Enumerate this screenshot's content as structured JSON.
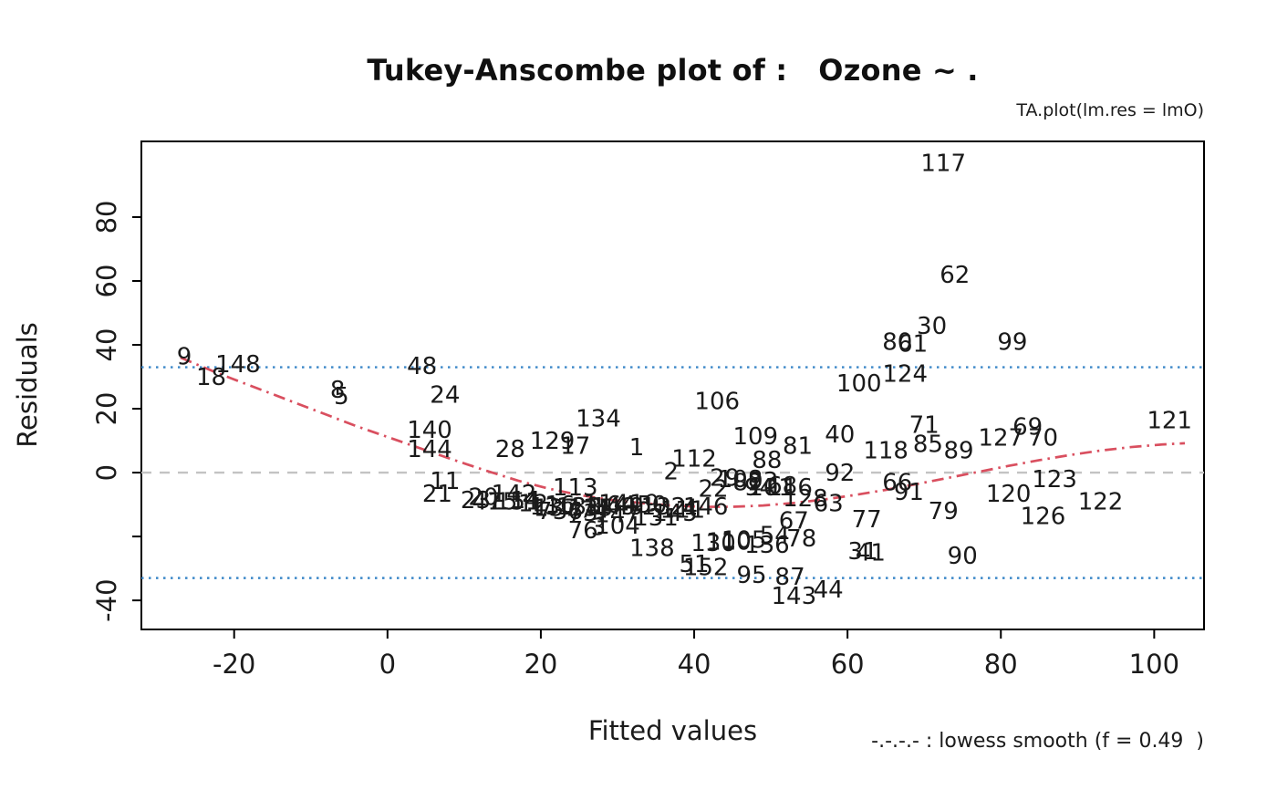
{
  "chart_data": {
    "type": "scatter",
    "title": "Tukey-Anscombe plot of :   Ozone ~ .",
    "subtitle": "TA.plot(lm.res = lmO)",
    "xlabel": "Fitted values",
    "ylabel": "Residuals",
    "legend_note": "-.-.-.- : lowess smooth (f = 0.49  )",
    "point_marker": "observation-number-labels",
    "xlim": [
      -32.1,
      106.5
    ],
    "ylim": [
      -49.1,
      103.7
    ],
    "x_ticks": [
      -20,
      0,
      20,
      40,
      60,
      80,
      100
    ],
    "y_ticks": [
      {
        "value": 80,
        "label": "80"
      },
      {
        "value": 60,
        "label": "60"
      },
      {
        "value": 40,
        "label": "40"
      },
      {
        "value": 20,
        "label": "20"
      },
      {
        "value": 0,
        "label": "0"
      },
      {
        "value": -20,
        "label": ""
      },
      {
        "value": -40,
        "label": "-40"
      }
    ],
    "colors": {
      "axis": "#000000",
      "text": "#1b1b1b",
      "lowess": "#d94f5f",
      "zero_line": "#c3c3c3",
      "band_line": "#3b87c8"
    },
    "reference_lines": [
      {
        "name": "zero-line",
        "y": 0,
        "style": "dashed",
        "color": "#c3c3c3"
      },
      {
        "name": "upper-band-line",
        "y": 33,
        "style": "dotted",
        "color": "#3b87c8"
      },
      {
        "name": "lower-band-line",
        "y": -33,
        "style": "dotted",
        "color": "#3b87c8"
      }
    ],
    "lowess": {
      "f": 0.49,
      "color": "#d94f5f",
      "style": "dashdot",
      "points": [
        [
          -27,
          36
        ],
        [
          -22,
          31
        ],
        [
          -16,
          25.5
        ],
        [
          -10,
          20
        ],
        [
          -4,
          14.5
        ],
        [
          2,
          9.5
        ],
        [
          8,
          4.5
        ],
        [
          13,
          0.5
        ],
        [
          17,
          -2.5
        ],
        [
          21,
          -5
        ],
        [
          25,
          -7
        ],
        [
          29,
          -8.5
        ],
        [
          33,
          -9.5
        ],
        [
          37,
          -10.3
        ],
        [
          41,
          -10.7
        ],
        [
          45,
          -10.7
        ],
        [
          49,
          -10.3
        ],
        [
          53,
          -9.5
        ],
        [
          57,
          -8.4
        ],
        [
          61,
          -7
        ],
        [
          65,
          -5.4
        ],
        [
          69,
          -3.6
        ],
        [
          73,
          -1.7
        ],
        [
          77,
          0.2
        ],
        [
          81,
          2.1
        ],
        [
          85,
          3.9
        ],
        [
          89,
          5.5
        ],
        [
          93,
          6.9
        ],
        [
          97,
          8
        ],
        [
          101,
          8.8
        ],
        [
          104,
          9.2
        ]
      ]
    },
    "points": [
      {
        "label": "117",
        "x": 72.5,
        "y": 97
      },
      {
        "label": "62",
        "x": 74,
        "y": 62
      },
      {
        "label": "30",
        "x": 71,
        "y": 46
      },
      {
        "label": "80",
        "x": 66.5,
        "y": 41
      },
      {
        "label": "61",
        "x": 68.5,
        "y": 40.5
      },
      {
        "label": "99",
        "x": 81.5,
        "y": 41
      },
      {
        "label": "124",
        "x": 67.5,
        "y": 31
      },
      {
        "label": "100",
        "x": 61.5,
        "y": 28
      },
      {
        "label": "9",
        "x": -26.5,
        "y": 36.5
      },
      {
        "label": "18",
        "x": -23,
        "y": 30
      },
      {
        "label": "148",
        "x": -19.5,
        "y": 34
      },
      {
        "label": "48",
        "x": 4.5,
        "y": 33.5
      },
      {
        "label": "8",
        "x": -6.5,
        "y": 26
      },
      {
        "label": "5",
        "x": -6,
        "y": 24
      },
      {
        "label": "24",
        "x": 7.5,
        "y": 24.5
      },
      {
        "label": "106",
        "x": 43,
        "y": 22.5
      },
      {
        "label": "134",
        "x": 27.5,
        "y": 17
      },
      {
        "label": "140",
        "x": 5.5,
        "y": 13.5
      },
      {
        "label": "144",
        "x": 5.5,
        "y": 7.5
      },
      {
        "label": "109",
        "x": 48,
        "y": 11.5
      },
      {
        "label": "40",
        "x": 59,
        "y": 12
      },
      {
        "label": "81",
        "x": 53.5,
        "y": 8.5
      },
      {
        "label": "71",
        "x": 70,
        "y": 15
      },
      {
        "label": "69",
        "x": 83.5,
        "y": 14.5
      },
      {
        "label": "127",
        "x": 80,
        "y": 11
      },
      {
        "label": "70",
        "x": 85.5,
        "y": 11
      },
      {
        "label": "121",
        "x": 102,
        "y": 16.5
      },
      {
        "label": "85",
        "x": 70.5,
        "y": 9
      },
      {
        "label": "118",
        "x": 65,
        "y": 7
      },
      {
        "label": "89",
        "x": 74.5,
        "y": 7
      },
      {
        "label": "28",
        "x": 16,
        "y": 7.5
      },
      {
        "label": "129",
        "x": 21.5,
        "y": 10
      },
      {
        "label": "17",
        "x": 24.5,
        "y": 8.5
      },
      {
        "label": "1",
        "x": 32.5,
        "y": 8
      },
      {
        "label": "112",
        "x": 40,
        "y": 4.5
      },
      {
        "label": "88",
        "x": 49.5,
        "y": 4
      },
      {
        "label": "92",
        "x": 59,
        "y": 0
      },
      {
        "label": "2",
        "x": 37,
        "y": 0.5
      },
      {
        "label": "29",
        "x": 44,
        "y": -1.5
      },
      {
        "label": "108",
        "x": 46,
        "y": -2
      },
      {
        "label": "82",
        "x": 47,
        "y": -3
      },
      {
        "label": "93",
        "x": 49,
        "y": -2.5
      },
      {
        "label": "66",
        "x": 66.5,
        "y": -3
      },
      {
        "label": "91",
        "x": 68,
        "y": -6
      },
      {
        "label": "123",
        "x": 87,
        "y": -2
      },
      {
        "label": "120",
        "x": 81,
        "y": -6.5
      },
      {
        "label": "126",
        "x": 85.5,
        "y": -13.5
      },
      {
        "label": "122",
        "x": 93,
        "y": -9
      },
      {
        "label": "79",
        "x": 72.5,
        "y": -12
      },
      {
        "label": "90",
        "x": 75,
        "y": -26
      },
      {
        "label": "77",
        "x": 62.5,
        "y": -14.5
      },
      {
        "label": "63",
        "x": 57.5,
        "y": -9.5
      },
      {
        "label": "128",
        "x": 54.5,
        "y": -8
      },
      {
        "label": "67",
        "x": 53,
        "y": -15
      },
      {
        "label": "41",
        "x": 63,
        "y": -25
      },
      {
        "label": "31",
        "x": 62,
        "y": -24.5
      },
      {
        "label": "95",
        "x": 47.5,
        "y": -32
      },
      {
        "label": "87",
        "x": 52.5,
        "y": -32.5
      },
      {
        "label": "143",
        "x": 53,
        "y": -38.5
      },
      {
        "label": "44",
        "x": 57.5,
        "y": -36.5
      },
      {
        "label": "51",
        "x": 40,
        "y": -28.5
      },
      {
        "label": "152",
        "x": 41.5,
        "y": -29.5
      },
      {
        "label": "138",
        "x": 34.5,
        "y": -23.5
      },
      {
        "label": "136",
        "x": 49.5,
        "y": -22.5
      },
      {
        "label": "54",
        "x": 50.5,
        "y": -19.5
      },
      {
        "label": "78",
        "x": 54,
        "y": -20.5
      },
      {
        "label": "110",
        "x": 44.5,
        "y": -21.5
      },
      {
        "label": "130",
        "x": 42.5,
        "y": -22
      },
      {
        "label": "105",
        "x": 46.5,
        "y": -21
      },
      {
        "label": "76",
        "x": 25.5,
        "y": -18
      },
      {
        "label": "3",
        "x": 27.5,
        "y": -17
      },
      {
        "label": "104",
        "x": 30,
        "y": -16.5
      },
      {
        "label": "131",
        "x": 35,
        "y": -14
      },
      {
        "label": "113",
        "x": 24.5,
        "y": -4.5
      },
      {
        "label": "21",
        "x": 6.5,
        "y": -6.5
      },
      {
        "label": "11",
        "x": 7.5,
        "y": -2.5
      },
      {
        "label": "23",
        "x": 11.5,
        "y": -8.5
      },
      {
        "label": "47",
        "x": 13,
        "y": -9
      },
      {
        "label": "15",
        "x": 15,
        "y": -9
      },
      {
        "label": "151",
        "x": 17,
        "y": -9
      },
      {
        "label": "7",
        "x": 20.5,
        "y": -12
      },
      {
        "label": "73",
        "x": 25.5,
        "y": -12.5
      },
      {
        "label": "74",
        "x": 27,
        "y": -11.5
      },
      {
        "label": "36",
        "x": 23.5,
        "y": -12
      },
      {
        "label": "13",
        "x": 20.5,
        "y": -10.5
      },
      {
        "label": "137",
        "x": 22,
        "y": -11
      },
      {
        "label": "16",
        "x": 22.5,
        "y": -10
      },
      {
        "label": "133",
        "x": 25,
        "y": -10.5
      },
      {
        "label": "135",
        "x": 26.5,
        "y": -11
      },
      {
        "label": "149",
        "x": 29.5,
        "y": -10.5
      },
      {
        "label": "64",
        "x": 30.5,
        "y": -10
      },
      {
        "label": "49",
        "x": 31.5,
        "y": -10.5
      },
      {
        "label": "114",
        "x": 28.5,
        "y": -9.5
      },
      {
        "label": "147",
        "x": 30,
        "y": -13
      },
      {
        "label": "19",
        "x": 33.5,
        "y": -9.5
      },
      {
        "label": "50",
        "x": 34.5,
        "y": -10
      },
      {
        "label": "132",
        "x": 36,
        "y": -10.5
      },
      {
        "label": "111",
        "x": 38.5,
        "y": -11.5
      },
      {
        "label": "145",
        "x": 37.5,
        "y": -12.5
      },
      {
        "label": "4",
        "x": 39.5,
        "y": -11
      },
      {
        "label": "146",
        "x": 41.5,
        "y": -10.5
      },
      {
        "label": "22",
        "x": 42.5,
        "y": -5
      },
      {
        "label": "101",
        "x": 50,
        "y": -4.5
      },
      {
        "label": "94",
        "x": 48.5,
        "y": -4.5
      },
      {
        "label": "68",
        "x": 51.5,
        "y": -4
      },
      {
        "label": "116",
        "x": 52.5,
        "y": -4.5
      },
      {
        "label": "20",
        "x": 12.5,
        "y": -7.5
      },
      {
        "label": "142",
        "x": 16.5,
        "y": -6.5
      },
      {
        "label": "12",
        "x": 19,
        "y": -9.5
      },
      {
        "label": "14",
        "x": 18,
        "y": -8.5
      }
    ]
  }
}
